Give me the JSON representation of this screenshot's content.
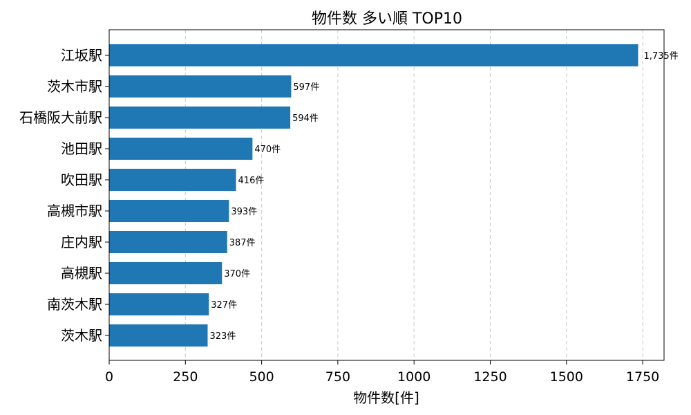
{
  "chart_data": {
    "type": "bar",
    "orientation": "horizontal",
    "title": "物件数 多い順 TOP10",
    "xlabel": "物件数[件]",
    "ylabel": "",
    "categories": [
      "江坂駅",
      "茨木市駅",
      "石橋阪大前駅",
      "池田駅",
      "吹田駅",
      "高槻市駅",
      "庄内駅",
      "高槻駅",
      "南茨木駅",
      "茨木駅"
    ],
    "values": [
      1735,
      597,
      594,
      470,
      416,
      393,
      387,
      370,
      327,
      323
    ],
    "data_labels": [
      "1,735件",
      "597件",
      "594件",
      "470件",
      "416件",
      "393件",
      "387件",
      "370件",
      "327件",
      "323件"
    ],
    "xlim": [
      0,
      1820
    ],
    "xticks": [
      0,
      250,
      500,
      750,
      1000,
      1250,
      1500,
      1750
    ],
    "xtick_labels": [
      "0",
      "250",
      "500",
      "750",
      "1000",
      "1250",
      "1500",
      "1750"
    ],
    "grid": "x-dashed",
    "legend": "none",
    "bar_color": "#1f77b4"
  }
}
